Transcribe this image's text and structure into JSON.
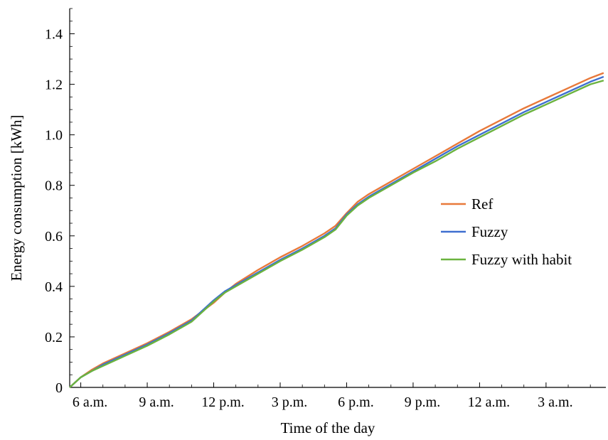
{
  "chart_data": {
    "type": "line",
    "title": "",
    "xlabel": "Time of the day",
    "ylabel": "Energy consumption [kWh]",
    "x_unit": "hours of day (continuing past midnight)",
    "xlim": [
      5.5,
      29.7
    ],
    "ylim": [
      0,
      1.5
    ],
    "x_ticks": [
      {
        "value": 6,
        "label": "6 a.m."
      },
      {
        "value": 9,
        "label": "9 a.m."
      },
      {
        "value": 12,
        "label": "12 p.m."
      },
      {
        "value": 15,
        "label": "3 p.m."
      },
      {
        "value": 18,
        "label": "6 p.m."
      },
      {
        "value": 21,
        "label": "9 p.m."
      },
      {
        "value": 24,
        "label": "12 a.m."
      },
      {
        "value": 27,
        "label": "3 a.m."
      }
    ],
    "y_ticks": [
      {
        "value": 0,
        "label": "0"
      },
      {
        "value": 0.2,
        "label": "0.2"
      },
      {
        "value": 0.4,
        "label": "0.4"
      },
      {
        "value": 0.6,
        "label": "0.6"
      },
      {
        "value": 0.8,
        "label": "0.8"
      },
      {
        "value": 1.0,
        "label": "1.0"
      },
      {
        "value": 1.2,
        "label": "1.2"
      },
      {
        "value": 1.4,
        "label": "1.4"
      }
    ],
    "grid": false,
    "legend": "right",
    "series": [
      {
        "name": "Ref",
        "color": "#E8793A",
        "x": [
          5.5,
          6.0,
          6.5,
          7.0,
          8.0,
          9.0,
          10.0,
          11.0,
          12.0,
          12.5,
          13.0,
          14.0,
          15.0,
          16.0,
          17.0,
          17.5,
          18.0,
          18.5,
          19.0,
          20.0,
          21.0,
          22.0,
          23.0,
          24.0,
          25.0,
          26.0,
          27.0,
          28.0,
          29.0,
          29.6
        ],
        "y": [
          0.0,
          0.04,
          0.07,
          0.095,
          0.135,
          0.175,
          0.22,
          0.27,
          0.335,
          0.375,
          0.41,
          0.465,
          0.515,
          0.56,
          0.61,
          0.64,
          0.69,
          0.735,
          0.765,
          0.815,
          0.865,
          0.915,
          0.965,
          1.015,
          1.06,
          1.105,
          1.145,
          1.185,
          1.225,
          1.245
        ]
      },
      {
        "name": "Fuzzy",
        "color": "#3E6FD0",
        "x": [
          5.5,
          6.0,
          6.5,
          7.0,
          8.0,
          9.0,
          10.0,
          11.0,
          12.0,
          12.5,
          13.0,
          14.0,
          15.0,
          16.0,
          17.0,
          17.5,
          18.0,
          18.5,
          19.0,
          20.0,
          21.0,
          22.0,
          23.0,
          24.0,
          25.0,
          26.0,
          27.0,
          28.0,
          29.0,
          29.6
        ],
        "y": [
          0.0,
          0.04,
          0.065,
          0.09,
          0.13,
          0.17,
          0.215,
          0.265,
          0.345,
          0.38,
          0.405,
          0.455,
          0.505,
          0.55,
          0.6,
          0.63,
          0.685,
          0.725,
          0.755,
          0.805,
          0.855,
          0.905,
          0.955,
          1.0,
          1.045,
          1.09,
          1.13,
          1.17,
          1.21,
          1.23
        ]
      },
      {
        "name": "Fuzzy with habit",
        "color": "#6BB33F",
        "x": [
          5.5,
          6.0,
          6.5,
          7.0,
          8.0,
          9.0,
          10.0,
          11.0,
          12.0,
          12.5,
          13.0,
          14.0,
          15.0,
          16.0,
          17.0,
          17.5,
          18.0,
          18.5,
          19.0,
          20.0,
          21.0,
          22.0,
          23.0,
          24.0,
          25.0,
          26.0,
          27.0,
          28.0,
          29.0,
          29.6
        ],
        "y": [
          0.0,
          0.04,
          0.065,
          0.085,
          0.125,
          0.165,
          0.21,
          0.26,
          0.34,
          0.375,
          0.4,
          0.45,
          0.5,
          0.545,
          0.595,
          0.625,
          0.68,
          0.72,
          0.75,
          0.8,
          0.85,
          0.895,
          0.945,
          0.99,
          1.035,
          1.08,
          1.12,
          1.16,
          1.2,
          1.215
        ]
      }
    ]
  }
}
